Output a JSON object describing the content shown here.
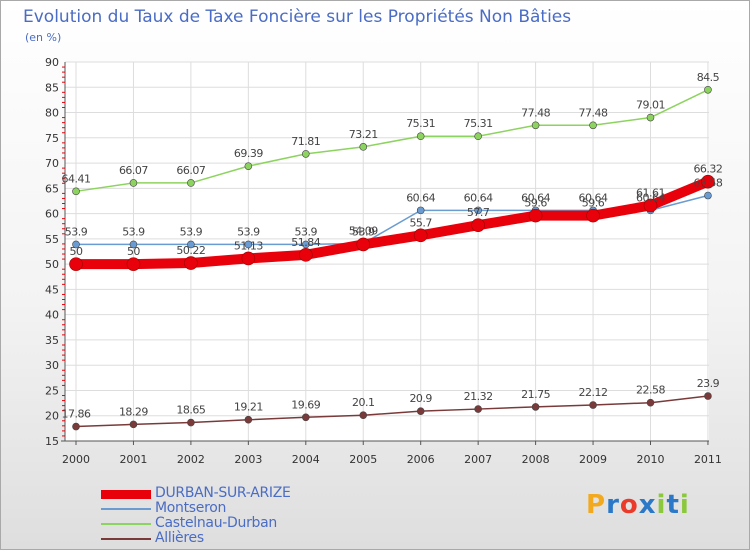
{
  "header": {
    "title": "Evolution du Taux de Taxe Foncière sur les Propriétés Non Bâties",
    "unit": "(en %)"
  },
  "logo": {
    "text": "Proxiti",
    "letters": [
      "P",
      "r",
      "o",
      "x",
      "i",
      "t",
      "i"
    ],
    "colors": [
      "#f2a91d",
      "#2b78c8",
      "#ec3a2a",
      "#2b78c8",
      "#8bc83c",
      "#2b78c8",
      "#8bc83c"
    ]
  },
  "chart_data": {
    "type": "line",
    "title": "Evolution du Taux de Taxe Foncière sur les Propriétés Non Bâties",
    "ylabel": "(en %)",
    "xlabel": "",
    "ylim": [
      15,
      90
    ],
    "yticks": [
      15,
      20,
      25,
      30,
      35,
      40,
      45,
      50,
      55,
      60,
      65,
      70,
      75,
      80,
      85,
      90
    ],
    "grid": true,
    "legend_position": "bottom-left",
    "x": [
      "2000",
      "2001",
      "2002",
      "2003",
      "2004",
      "2005",
      "2006",
      "2007",
      "2008",
      "2009",
      "2010",
      "2011"
    ],
    "series": [
      {
        "name": "DURBAN-SUR-ARIZE",
        "color": "#e8000b",
        "thick": true,
        "values": [
          50,
          50,
          50.22,
          51.13,
          51.84,
          53.9,
          55.7,
          57.7,
          59.6,
          59.6,
          61.61,
          66.32
        ],
        "labels": [
          "50",
          "50",
          "50.22",
          "51.13",
          "51.84",
          "53.9",
          "55.7",
          "57.7",
          "59.6",
          "59.6",
          "61.61",
          "66.32"
        ]
      },
      {
        "name": "Montseron",
        "color": "#6a9bd1",
        "thick": false,
        "values": [
          53.9,
          53.9,
          53.9,
          53.9,
          53.9,
          54.09,
          60.64,
          60.64,
          60.64,
          60.64,
          60.64,
          63.58
        ],
        "labels": [
          "53.9",
          "53.9",
          "53.9",
          "53.9",
          "53.9",
          "54.09",
          "60.64",
          "60.64",
          "60.64",
          "60.64",
          "60.64",
          "63.58"
        ]
      },
      {
        "name": "Castelnau-Durban",
        "color": "#8dd35f",
        "thick": false,
        "values": [
          64.41,
          66.07,
          66.07,
          69.39,
          71.81,
          73.21,
          75.31,
          75.31,
          77.48,
          77.48,
          79.01,
          84.5
        ],
        "labels": [
          "64.41",
          "66.07",
          "66.07",
          "69.39",
          "71.81",
          "73.21",
          "75.31",
          "75.31",
          "77.48",
          "77.48",
          "79.01",
          "84.5"
        ]
      },
      {
        "name": "Allières",
        "color": "#7a3a3a",
        "thick": false,
        "values": [
          17.86,
          18.29,
          18.65,
          19.21,
          19.69,
          20.1,
          20.9,
          21.32,
          21.75,
          22.12,
          22.58,
          23.9
        ],
        "labels": [
          "17.86",
          "18.29",
          "18.65",
          "19.21",
          "19.69",
          "20.1",
          "20.9",
          "21.32",
          "21.75",
          "22.12",
          "22.58",
          "23.9"
        ]
      }
    ]
  }
}
